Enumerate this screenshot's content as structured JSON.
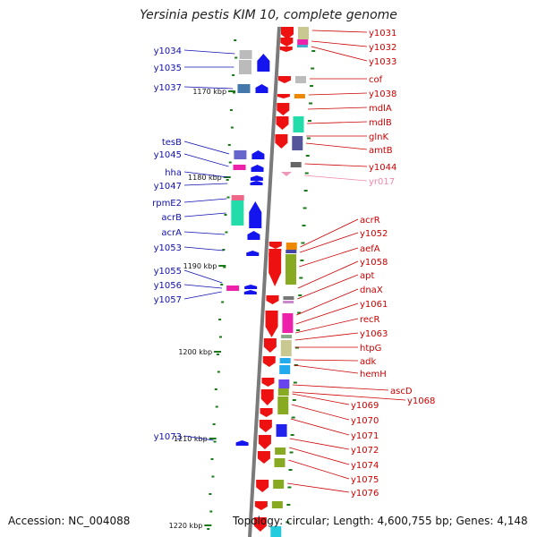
{
  "title": "Yersinia pestis KIM 10, complete genome",
  "footer": {
    "accession": "Accession: NC_004088",
    "topology": "Topology: circular; Length: 4,600,755 bp; Genes: 4,148"
  },
  "colors": {
    "left_label": "#1010b0",
    "right_label": "#cc0000",
    "pseudo_label": "#ee88aa",
    "track": "#888888",
    "ticks": "#1a7a1a"
  },
  "scale_labels": [
    {
      "text": "1170 kbp"
    },
    {
      "text": "1180 kbp"
    },
    {
      "text": "1190 kbp"
    },
    {
      "text": "1200 kbp"
    },
    {
      "text": "1210 kbp"
    },
    {
      "text": "1220 kbp"
    }
  ],
  "left_genes": [
    {
      "name": "y1034"
    },
    {
      "name": "y1035"
    },
    {
      "name": "y1037"
    },
    {
      "name": "tesB"
    },
    {
      "name": "y1045"
    },
    {
      "name": "hha"
    },
    {
      "name": "y1047"
    },
    {
      "name": "rpmE2"
    },
    {
      "name": "acrB"
    },
    {
      "name": "acrA"
    },
    {
      "name": "y1053"
    },
    {
      "name": "y1055"
    },
    {
      "name": "y1056"
    },
    {
      "name": "y1057"
    },
    {
      "name": "y1073"
    }
  ],
  "right_genes": [
    {
      "name": "y1031"
    },
    {
      "name": "y1032"
    },
    {
      "name": "y1033"
    },
    {
      "name": "cof"
    },
    {
      "name": "y1038"
    },
    {
      "name": "mdlA"
    },
    {
      "name": "mdlB"
    },
    {
      "name": "glnK"
    },
    {
      "name": "amtB"
    },
    {
      "name": "y1044"
    },
    {
      "name": "yr017"
    },
    {
      "name": "acrR"
    },
    {
      "name": "y1052"
    },
    {
      "name": "aefA"
    },
    {
      "name": "y1058"
    },
    {
      "name": "apt"
    },
    {
      "name": "dnaX"
    },
    {
      "name": "y1061"
    },
    {
      "name": "recR"
    },
    {
      "name": "y1063"
    },
    {
      "name": "htpG"
    },
    {
      "name": "adk"
    },
    {
      "name": "hemH"
    },
    {
      "name": "ascD"
    },
    {
      "name": "y1068"
    },
    {
      "name": "y1069"
    },
    {
      "name": "y1070"
    },
    {
      "name": "y1071"
    },
    {
      "name": "y1072"
    },
    {
      "name": "y1074"
    },
    {
      "name": "y1075"
    },
    {
      "name": "y1076"
    }
  ]
}
